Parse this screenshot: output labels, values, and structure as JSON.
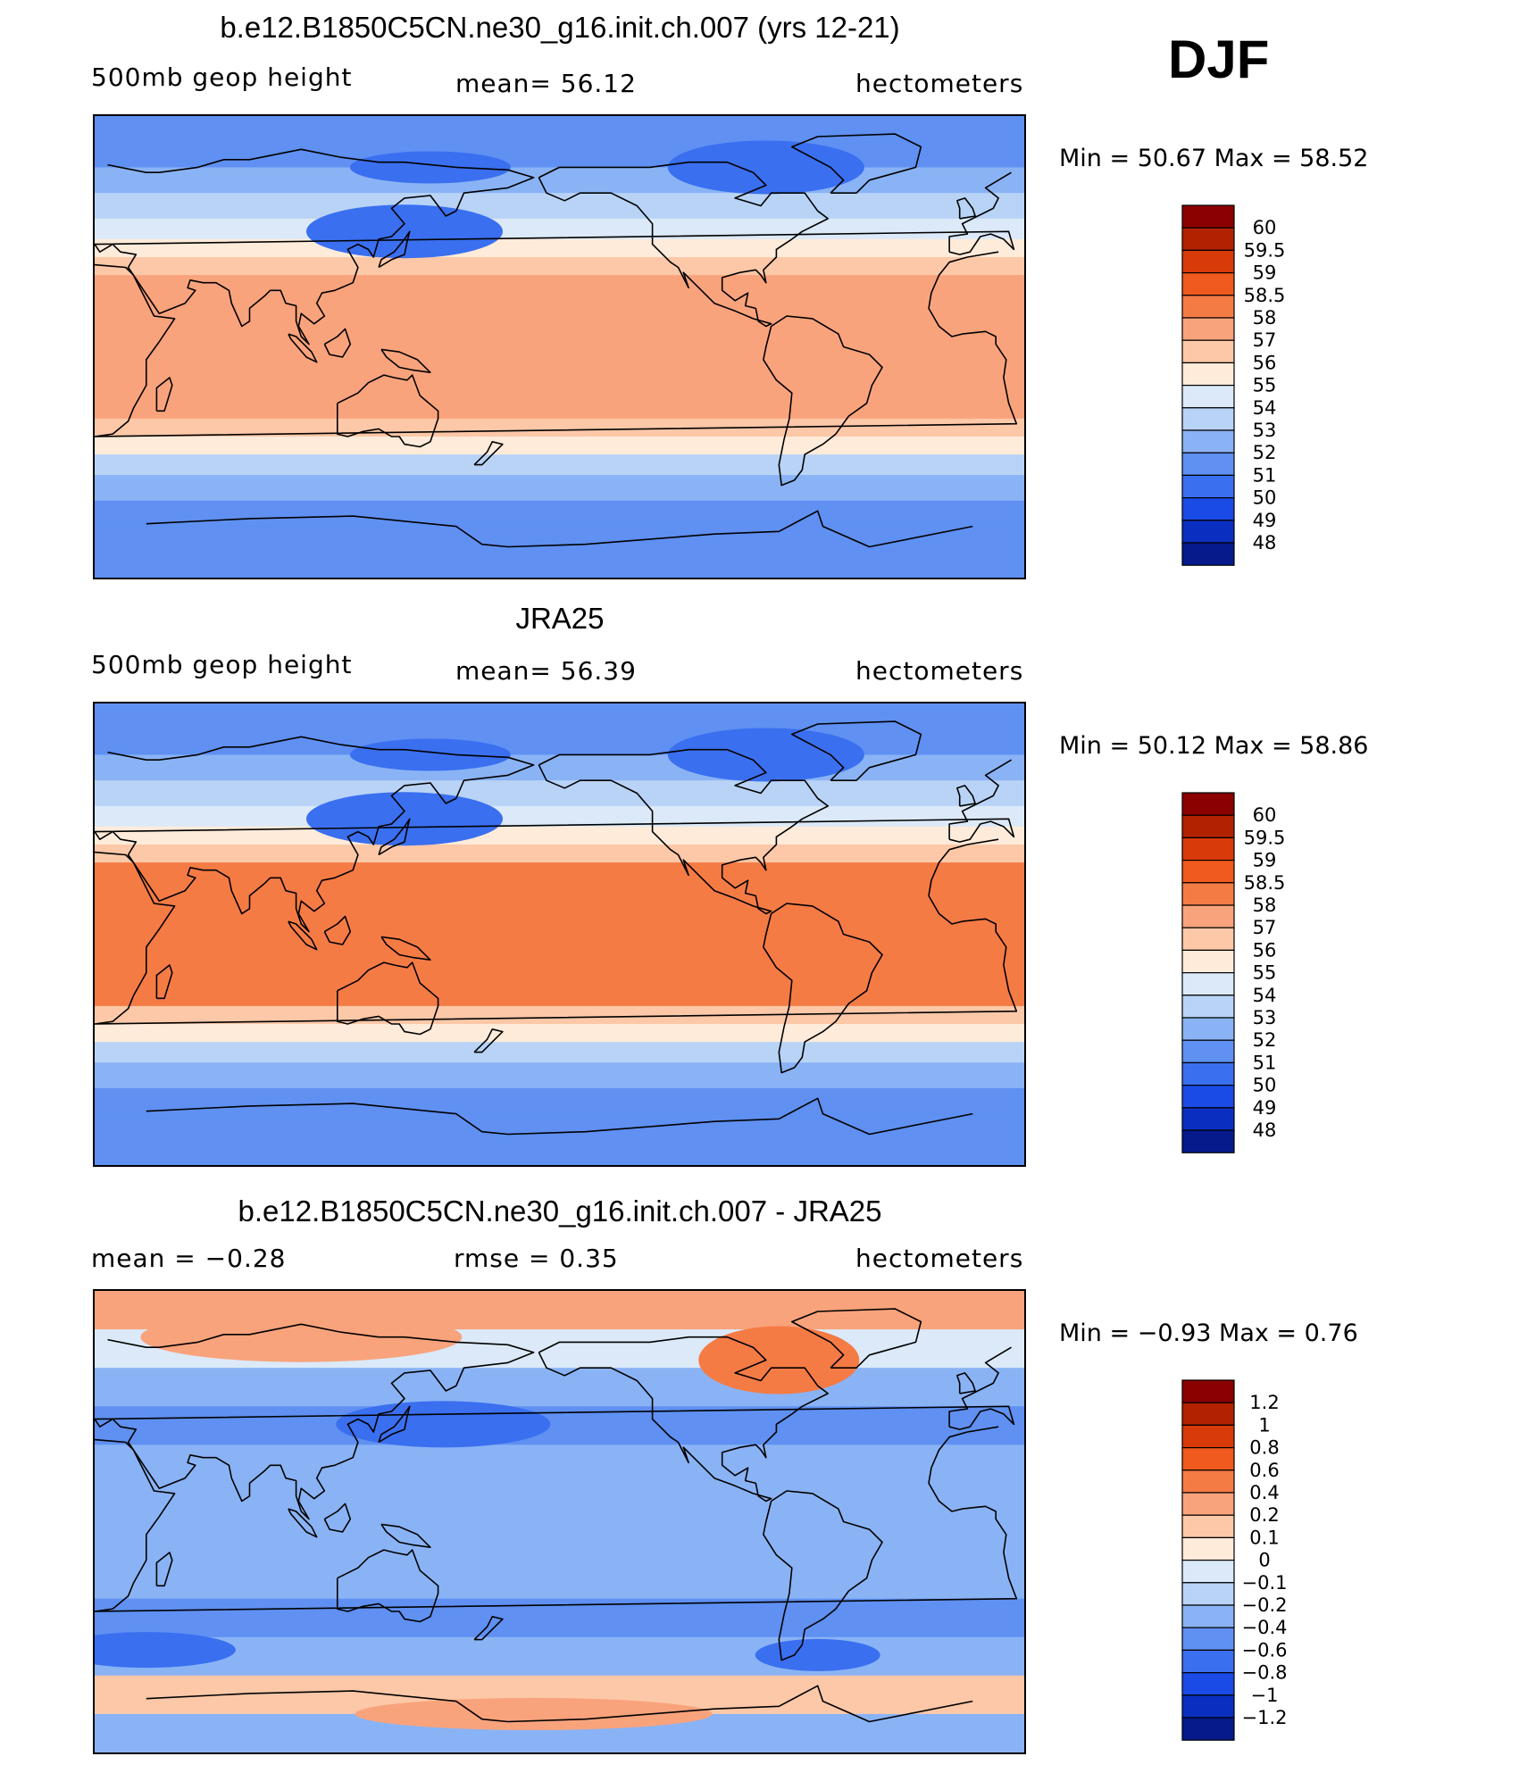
{
  "season": "DJF",
  "panels": [
    {
      "id": "model",
      "title": "b.e12.B1850C5CN.ne30_g16.init.ch.007 (yrs 12-21)",
      "left_label": "500mb geop height",
      "center_label": "mean=   56.12",
      "right_label": "hectometers",
      "min_max": "Min =   50.67  Max =   58.52"
    },
    {
      "id": "obs",
      "title": "JRA25",
      "left_label": "500mb geop height",
      "center_label": "mean=   56.39",
      "right_label": "hectometers",
      "min_max": "Min =   50.12  Max =   58.86"
    },
    {
      "id": "diff",
      "title": "b.e12.B1850C5CN.ne30_g16.init.ch.007 - JRA25",
      "left_label": "mean =   −0.28",
      "center_label": "rmse =    0.35",
      "right_label": "hectometers",
      "min_max": "Min =   −0.93  Max =    0.76"
    }
  ],
  "chart_data": [
    {
      "type": "heatmap",
      "title": "b.e12.B1850C5CN.ne30_g16.init.ch.007 (yrs 12-21)",
      "variable": "500mb geop height",
      "units": "hectometers",
      "mean": 56.12,
      "min": 50.67,
      "max": 58.52,
      "lat_bands": [
        90,
        70,
        60,
        50,
        42,
        35,
        28,
        0,
        -28,
        -35,
        -42,
        -50,
        -60,
        -70,
        -90
      ],
      "band_values": [
        51.5,
        52.5,
        53.5,
        54.5,
        55.5,
        56.5,
        57.5,
        57.5,
        56.5,
        55.5,
        53.5,
        52.5,
        51.5,
        51.5
      ],
      "levels": [
        "60",
        "59.5",
        "59",
        "58.5",
        "58",
        "57",
        "56",
        "55",
        "54",
        "53",
        "52",
        "51",
        "50",
        "49",
        "48"
      ],
      "colors": [
        "#8b0000",
        "#b22200",
        "#d83a0a",
        "#f05a1e",
        "#f57b45",
        "#f9a37c",
        "#fcc8a8",
        "#feebda",
        "#dbe9f8",
        "#b8d3f6",
        "#8ab3f5",
        "#5f90f2",
        "#3a6ff0",
        "#1a4be6",
        "#0a2fc0",
        "#061a8c"
      ]
    },
    {
      "type": "heatmap",
      "title": "JRA25",
      "variable": "500mb geop height",
      "units": "hectometers",
      "mean": 56.39,
      "min": 50.12,
      "max": 58.86,
      "lat_bands": [
        90,
        70,
        60,
        50,
        42,
        35,
        28,
        0,
        -28,
        -35,
        -42,
        -50,
        -60,
        -70,
        -90
      ],
      "band_values": [
        51.5,
        52.5,
        53.5,
        54.5,
        55.5,
        56.5,
        58.25,
        58.25,
        56.5,
        55.5,
        53.5,
        52.5,
        51.5,
        51.5
      ],
      "levels": [
        "60",
        "59.5",
        "59",
        "58.5",
        "58",
        "57",
        "56",
        "55",
        "54",
        "53",
        "52",
        "51",
        "50",
        "49",
        "48"
      ],
      "colors": [
        "#8b0000",
        "#b22200",
        "#d83a0a",
        "#f05a1e",
        "#f57b45",
        "#f9a37c",
        "#fcc8a8",
        "#feebda",
        "#dbe9f8",
        "#b8d3f6",
        "#8ab3f5",
        "#5f90f2",
        "#3a6ff0",
        "#1a4be6",
        "#0a2fc0",
        "#061a8c"
      ]
    },
    {
      "type": "heatmap",
      "title": "b.e12.B1850C5CN.ne30_g16.init.ch.007 - JRA25",
      "units": "hectometers",
      "mean": -0.28,
      "rmse": 0.35,
      "min": -0.93,
      "max": 0.76,
      "lat_bands": [
        90,
        75,
        60,
        45,
        30,
        0,
        -30,
        -45,
        -60,
        -75,
        -90
      ],
      "band_values": [
        0.3,
        -0.1,
        -0.3,
        -0.5,
        -0.3,
        -0.3,
        -0.5,
        -0.3,
        0.15,
        -0.3
      ],
      "levels": [
        "1.2",
        "1",
        "0.8",
        "0.6",
        "0.4",
        "0.2",
        "0.1",
        "0",
        "−0.1",
        "−0.2",
        "−0.4",
        "−0.6",
        "−0.8",
        "−1",
        "−1.2"
      ],
      "colors": [
        "#8b0000",
        "#b22200",
        "#d83a0a",
        "#f05a1e",
        "#f57b45",
        "#f9a37c",
        "#fcc8a8",
        "#feebda",
        "#dbe9f8",
        "#b8d3f6",
        "#8ab3f5",
        "#5f90f2",
        "#3a6ff0",
        "#1a4be6",
        "#0a2fc0",
        "#061a8c"
      ]
    }
  ]
}
